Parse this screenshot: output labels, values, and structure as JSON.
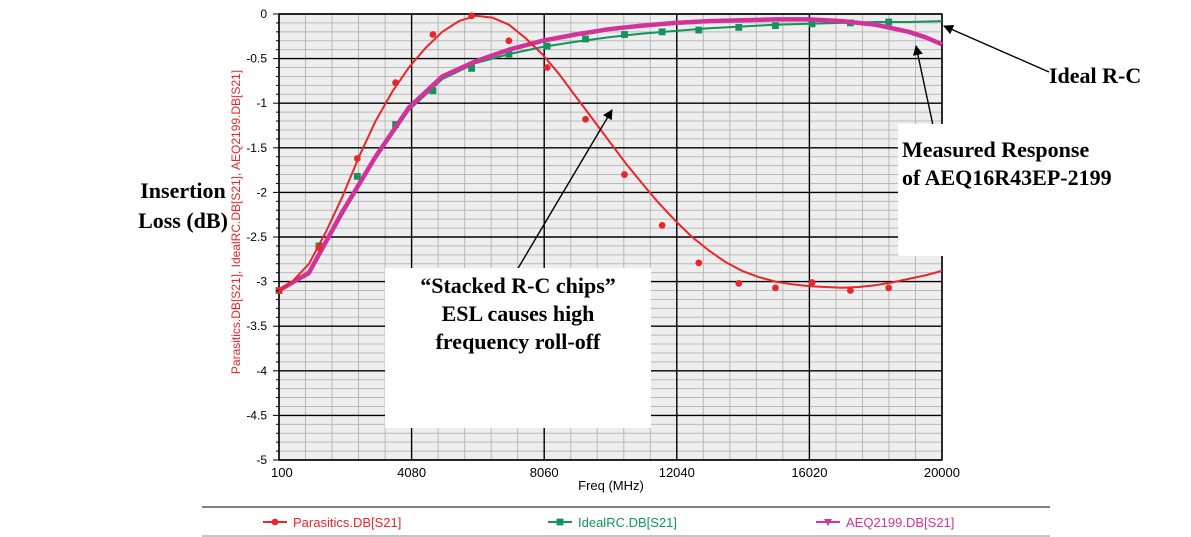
{
  "y_outer_label_line1": "Insertion",
  "y_outer_label_line2": "Loss (dB)",
  "annotations": {
    "ideal": "Ideal R-C",
    "measured_line1": "Measured Response",
    "measured_line2": "of AEQ16R43EP-2199",
    "stacked_line1": "“Stacked R-C chips”",
    "stacked_line2": "ESL causes high",
    "stacked_line3": "frequency roll-off"
  },
  "colors": {
    "plot_bg": "#eeeeee",
    "grid_major": "#000000",
    "grid_minor": "#b9b9b9",
    "parasitics": "#e8262c",
    "ideal": "#13945a",
    "measured": "#d1339b",
    "axis_text": "#000000",
    "ylabel_text": "#e8262c"
  },
  "chart_data": {
    "type": "line",
    "xlabel": "Freq (MHz)",
    "ylabel": "Parasitics.DB[S21], IdealRC.DB[S21], AEQ2199.DB[S21]",
    "xlim": [
      100,
      20000
    ],
    "ylim": [
      -5,
      0
    ],
    "x_ticks": [
      "100",
      "4080",
      "8060",
      "12040",
      "16020",
      "20000"
    ],
    "y_ticks": [
      "0",
      "-0.5",
      "-1",
      "-1.5",
      "-2",
      "-2.5",
      "-3",
      "-3.5",
      "-4",
      "-4.5",
      "-5"
    ],
    "grid": true,
    "legend_position": "bottom",
    "series": [
      {
        "name": "Parasitics.DB[S21]",
        "marker": "circle",
        "x": [
          100,
          500,
          1000,
          1500,
          2000,
          2500,
          3000,
          3500,
          4000,
          4500,
          5000,
          5500,
          6000,
          6500,
          7000,
          7500,
          8000,
          8500,
          9000,
          9500,
          10000,
          10500,
          11000,
          11500,
          12000,
          12500,
          13000,
          13500,
          14000,
          14500,
          15000,
          15500,
          16000,
          16500,
          17000,
          17500,
          18000,
          18500,
          19000,
          19500,
          20000
        ],
        "y": [
          -3.1,
          -3.0,
          -2.8,
          -2.45,
          -2.05,
          -1.6,
          -1.2,
          -0.87,
          -0.6,
          -0.38,
          -0.2,
          -0.08,
          -0.02,
          -0.04,
          -0.12,
          -0.27,
          -0.45,
          -0.67,
          -0.92,
          -1.17,
          -1.42,
          -1.67,
          -1.9,
          -2.12,
          -2.32,
          -2.5,
          -2.65,
          -2.78,
          -2.88,
          -2.95,
          -3.0,
          -3.03,
          -3.05,
          -3.06,
          -3.07,
          -3.06,
          -3.04,
          -3.01,
          -2.97,
          -2.93,
          -2.88
        ],
        "markers_x": [
          100,
          1300,
          2450,
          3600,
          4720,
          5880,
          7000,
          8150,
          9300,
          10470,
          11600,
          12700,
          13900,
          15000,
          16100,
          17250,
          18400
        ],
        "markers_y": [
          -3.1,
          -2.62,
          -1.62,
          -0.77,
          -0.23,
          -0.02,
          -0.3,
          -0.6,
          -1.18,
          -1.8,
          -2.37,
          -2.79,
          -3.02,
          -3.07,
          -3.01,
          -3.1,
          -3.07
        ]
      },
      {
        "name": "IdealRC.DB[S21]",
        "marker": "square",
        "x": [
          100,
          1000,
          2000,
          3000,
          4000,
          5000,
          6000,
          7000,
          8000,
          9000,
          10000,
          11000,
          12000,
          13000,
          14000,
          15000,
          16000,
          17000,
          18000,
          19000,
          20000
        ],
        "y": [
          -3.1,
          -2.92,
          -2.25,
          -1.62,
          -1.08,
          -0.73,
          -0.55,
          -0.45,
          -0.37,
          -0.31,
          -0.26,
          -0.22,
          -0.19,
          -0.16,
          -0.14,
          -0.12,
          -0.11,
          -0.1,
          -0.09,
          -0.09,
          -0.08
        ],
        "markers_x": [
          100,
          1300,
          2450,
          3600,
          4720,
          5880,
          7000,
          8150,
          9300,
          10470,
          11600,
          12700,
          13900,
          15000,
          16100,
          17250,
          18400
        ],
        "markers_y": [
          -3.1,
          -2.6,
          -1.82,
          -1.24,
          -0.86,
          -0.61,
          -0.45,
          -0.36,
          -0.28,
          -0.23,
          -0.2,
          -0.18,
          -0.15,
          -0.13,
          -0.11,
          -0.1,
          -0.09
        ]
      },
      {
        "name": "AEQ2199.DB[S21]",
        "marker": "triangle-down",
        "x": [
          100,
          1000,
          2000,
          3000,
          4000,
          5000,
          6000,
          7000,
          8000,
          9000,
          10000,
          11000,
          12000,
          13000,
          14000,
          15000,
          16000,
          17000,
          18000,
          19000,
          19500,
          20000
        ],
        "y": [
          -3.1,
          -2.9,
          -2.22,
          -1.6,
          -1.05,
          -0.7,
          -0.53,
          -0.4,
          -0.3,
          -0.23,
          -0.17,
          -0.13,
          -0.1,
          -0.08,
          -0.07,
          -0.06,
          -0.06,
          -0.08,
          -0.12,
          -0.2,
          -0.26,
          -0.34
        ],
        "markers_x": [],
        "markers_y": []
      }
    ]
  }
}
